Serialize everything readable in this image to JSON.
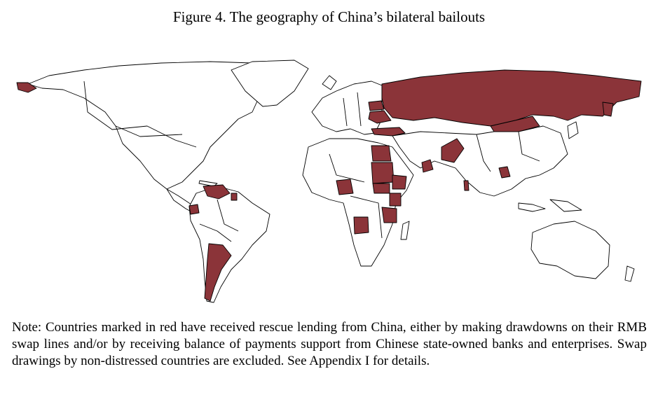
{
  "figure": {
    "title": "Figure 4. The geography of China’s bilateral bailouts",
    "note": "Note: Countries marked in red have received rescue lending from China, either by making drawdowns on their RMB swap lines and/or by receiving balance of payments support from Chinese state-owned banks and enterprises. Swap drawings by non-distressed countries are excluded. See Appendix I for details."
  },
  "map": {
    "type": "world choropleth",
    "highlight_color": "#8b3439",
    "base_color": "#ffffff",
    "highlighted_countries": [
      "Russia",
      "Mongolia",
      "Ukraine",
      "Belarus",
      "Turkey",
      "Egypt",
      "Sudan",
      "South Sudan",
      "Ethiopia",
      "Kenya",
      "Nigeria",
      "Angola",
      "Tanzania",
      "Pakistan",
      "Sri Lanka",
      "Laos",
      "Oman",
      "Venezuela",
      "Ecuador",
      "Suriname",
      "Argentina"
    ]
  }
}
